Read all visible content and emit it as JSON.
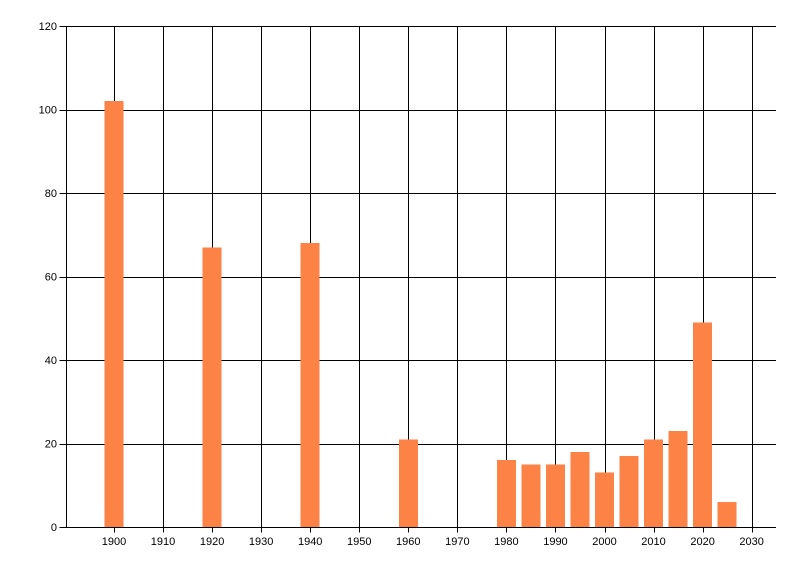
{
  "page": {
    "background": "#ffffff"
  },
  "chart_data": {
    "type": "bar",
    "title": "",
    "xlabel": "",
    "ylabel": "",
    "x": [
      1900,
      1920,
      1940,
      1960,
      1980,
      1985,
      1990,
      1995,
      2000,
      2005,
      2010,
      2015,
      2020,
      2025
    ],
    "values": [
      102,
      67,
      68,
      21,
      16,
      15,
      15,
      18,
      13,
      17,
      21,
      23,
      49,
      6
    ],
    "x_ticks": [
      1900,
      1910,
      1920,
      1930,
      1940,
      1950,
      1960,
      1970,
      1980,
      1990,
      2000,
      2010,
      2020,
      2030
    ],
    "y_ticks": [
      0,
      20,
      40,
      60,
      80,
      100,
      120
    ],
    "xlim": [
      1890.5,
      2035
    ],
    "ylim": [
      0,
      120
    ],
    "grid": true,
    "legend": false,
    "bar_color": "#FC8246",
    "line_color": "#000000",
    "text_color": "#000000",
    "background_color": "#FFFFFF"
  }
}
